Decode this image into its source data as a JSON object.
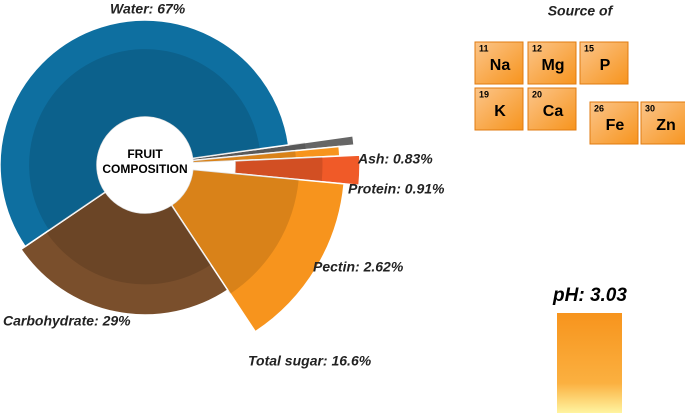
{
  "chart_data": {
    "type": "pie",
    "center_label": [
      "FRUIT",
      "COMPOSITION"
    ],
    "labels": [
      "Ash: 0.83%",
      "Protein: 0.91%",
      "Pectin: 2.62%",
      "Total sugar: 16.6%",
      "Carbohydrate: 29%",
      "Water: 67%"
    ],
    "values": [
      0.83,
      0.91,
      2.62,
      16.6,
      29,
      67
    ],
    "colors": [
      "#666666",
      "#f7941d",
      "#f05a28",
      "#f7941d",
      "#7a4f2c",
      "#0e6fa0"
    ]
  },
  "source": {
    "title": "Source of",
    "elements": [
      {
        "number": 11,
        "symbol": "Na"
      },
      {
        "number": 12,
        "symbol": "Mg"
      },
      {
        "number": 15,
        "symbol": "P"
      },
      {
        "number": 19,
        "symbol": "K"
      },
      {
        "number": 20,
        "symbol": "Ca"
      },
      {
        "number": 26,
        "symbol": "Fe"
      },
      {
        "number": 30,
        "symbol": "Zn"
      }
    ]
  },
  "ph": {
    "label": "pH: 3.03",
    "value": 3.03
  }
}
